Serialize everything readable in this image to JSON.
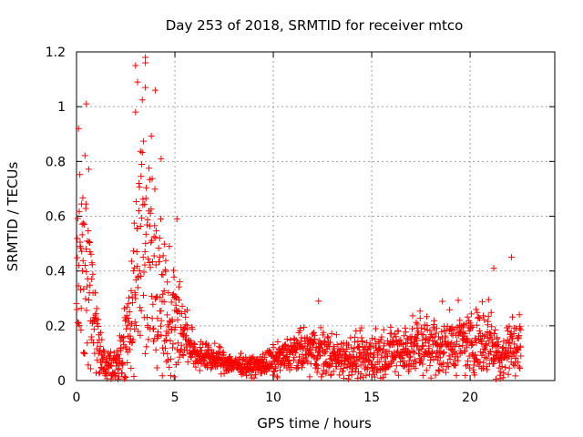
{
  "chart_data": {
    "type": "scatter",
    "title": "Day 253 of 2018, SRMTID for receiver mtco",
    "xlabel": "GPS time / hours",
    "ylabel": "SRMTID / TECUs",
    "xlim": [
      0,
      24.3
    ],
    "ylim": [
      0,
      1.2
    ],
    "xticks": [
      0,
      5,
      10,
      15,
      20
    ],
    "xtick_labels": [
      "0",
      "5",
      "10",
      "15",
      "20"
    ],
    "yticks": [
      0,
      0.2,
      0.4,
      0.6,
      0.8,
      1,
      1.2
    ],
    "ytick_labels": [
      "0",
      "0.2",
      "0.4",
      "0.6",
      "0.8",
      "1",
      "1.2"
    ],
    "grid": true,
    "marker": "+",
    "color": "#ff0000",
    "envelope": {
      "description": "approximate density envelope of scattered points (hour, typical level, spread)",
      "x": [
        0.0,
        0.3,
        0.6,
        0.9,
        1.2,
        1.5,
        2.0,
        2.5,
        3.0,
        3.3,
        3.6,
        4.0,
        4.4,
        4.8,
        5.2,
        5.6,
        6.0,
        7.0,
        8.0,
        9.0,
        10.0,
        11.0,
        12.0,
        13.0,
        14.0,
        15.0,
        16.0,
        17.0,
        18.0,
        19.0,
        20.0,
        21.0,
        21.5,
        22.0,
        22.5
      ],
      "level": [
        0.28,
        0.45,
        0.42,
        0.25,
        0.1,
        0.06,
        0.07,
        0.12,
        0.35,
        0.55,
        0.45,
        0.38,
        0.3,
        0.25,
        0.22,
        0.15,
        0.1,
        0.08,
        0.06,
        0.05,
        0.07,
        0.1,
        0.11,
        0.09,
        0.08,
        0.09,
        0.1,
        0.12,
        0.13,
        0.13,
        0.14,
        0.16,
        0.08,
        0.12,
        0.12
      ],
      "spread": [
        0.25,
        0.35,
        0.3,
        0.2,
        0.07,
        0.05,
        0.06,
        0.12,
        0.3,
        0.45,
        0.4,
        0.35,
        0.25,
        0.2,
        0.15,
        0.08,
        0.05,
        0.04,
        0.03,
        0.03,
        0.05,
        0.06,
        0.08,
        0.07,
        0.07,
        0.08,
        0.08,
        0.09,
        0.1,
        0.1,
        0.1,
        0.12,
        0.08,
        0.1,
        0.1
      ]
    },
    "notable_points": [
      {
        "x": 0.5,
        "y": 1.01
      },
      {
        "x": 0.1,
        "y": 0.92
      },
      {
        "x": 3.0,
        "y": 1.15
      },
      {
        "x": 3.5,
        "y": 1.18
      },
      {
        "x": 3.5,
        "y": 1.16
      },
      {
        "x": 3.1,
        "y": 1.09
      },
      {
        "x": 3.5,
        "y": 1.07
      },
      {
        "x": 4.0,
        "y": 1.06
      },
      {
        "x": 3.0,
        "y": 0.98
      },
      {
        "x": 4.3,
        "y": 0.81
      },
      {
        "x": 5.1,
        "y": 0.59
      },
      {
        "x": 12.3,
        "y": 0.29
      },
      {
        "x": 21.2,
        "y": 0.41
      },
      {
        "x": 22.1,
        "y": 0.45
      },
      {
        "x": 22.5,
        "y": 0.24
      }
    ],
    "point_count": 1700,
    "x_range_of_data": [
      0,
      22.6
    ]
  }
}
